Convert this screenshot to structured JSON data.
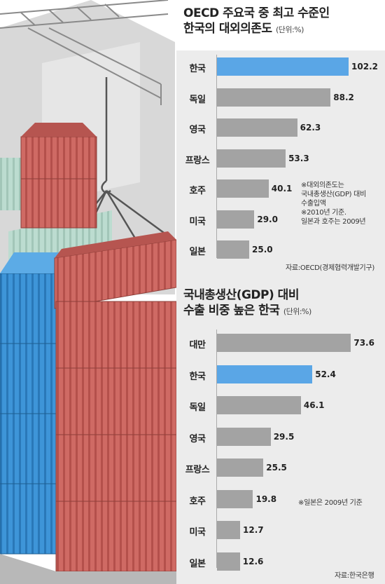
{
  "colors": {
    "highlight": "#5aa6e6",
    "bar": "#a3a3a3",
    "panel": "#ececec"
  },
  "charts": {
    "top": {
      "title_line1": "OECD 주요국 중 최고 수준인",
      "title_line2": "한국의 대외의존도",
      "unit": "(단위:%)",
      "note_lines": [
        "※대외의존도는",
        "국내총생산(GDP) 대비",
        "수출입액",
        "※2010년 기준.",
        "일본과 호주는 2009년"
      ],
      "source": "자료:OECD(경제협력개발기구)"
    },
    "bottom": {
      "title_line1": "국내총생산(GDP) 대비",
      "title_line2": "수출 비중 높은 한국",
      "unit": "(단위:%)",
      "note": "※일본은 2009년 기준",
      "source": "자료:한국은행"
    }
  },
  "chart_data": [
    {
      "type": "bar",
      "orientation": "horizontal",
      "title": "OECD 주요국 중 최고 수준인 한국의 대외의존도",
      "unit": "%",
      "categories": [
        "한국",
        "독일",
        "영국",
        "프랑스",
        "호주",
        "미국",
        "일본"
      ],
      "values": [
        102.2,
        88.2,
        62.3,
        53.3,
        40.1,
        29.0,
        25.0
      ],
      "labels": [
        "102.2",
        "88.2",
        "62.3",
        "53.3",
        "40.1",
        "29.0",
        "25.0"
      ],
      "highlight": "한국"
    },
    {
      "type": "bar",
      "orientation": "horizontal",
      "title": "국내총생산(GDP) 대비 수출 비중 높은 한국",
      "unit": "%",
      "categories": [
        "대만",
        "한국",
        "독일",
        "영국",
        "프랑스",
        "호주",
        "미국",
        "일본"
      ],
      "values": [
        73.6,
        52.4,
        46.1,
        29.5,
        25.5,
        19.8,
        12.7,
        12.6
      ],
      "labels": [
        "73.6",
        "52.4",
        "46.1",
        "29.5",
        "25.5",
        "19.8",
        "12.7",
        "12.6"
      ],
      "highlight": "한국"
    }
  ]
}
